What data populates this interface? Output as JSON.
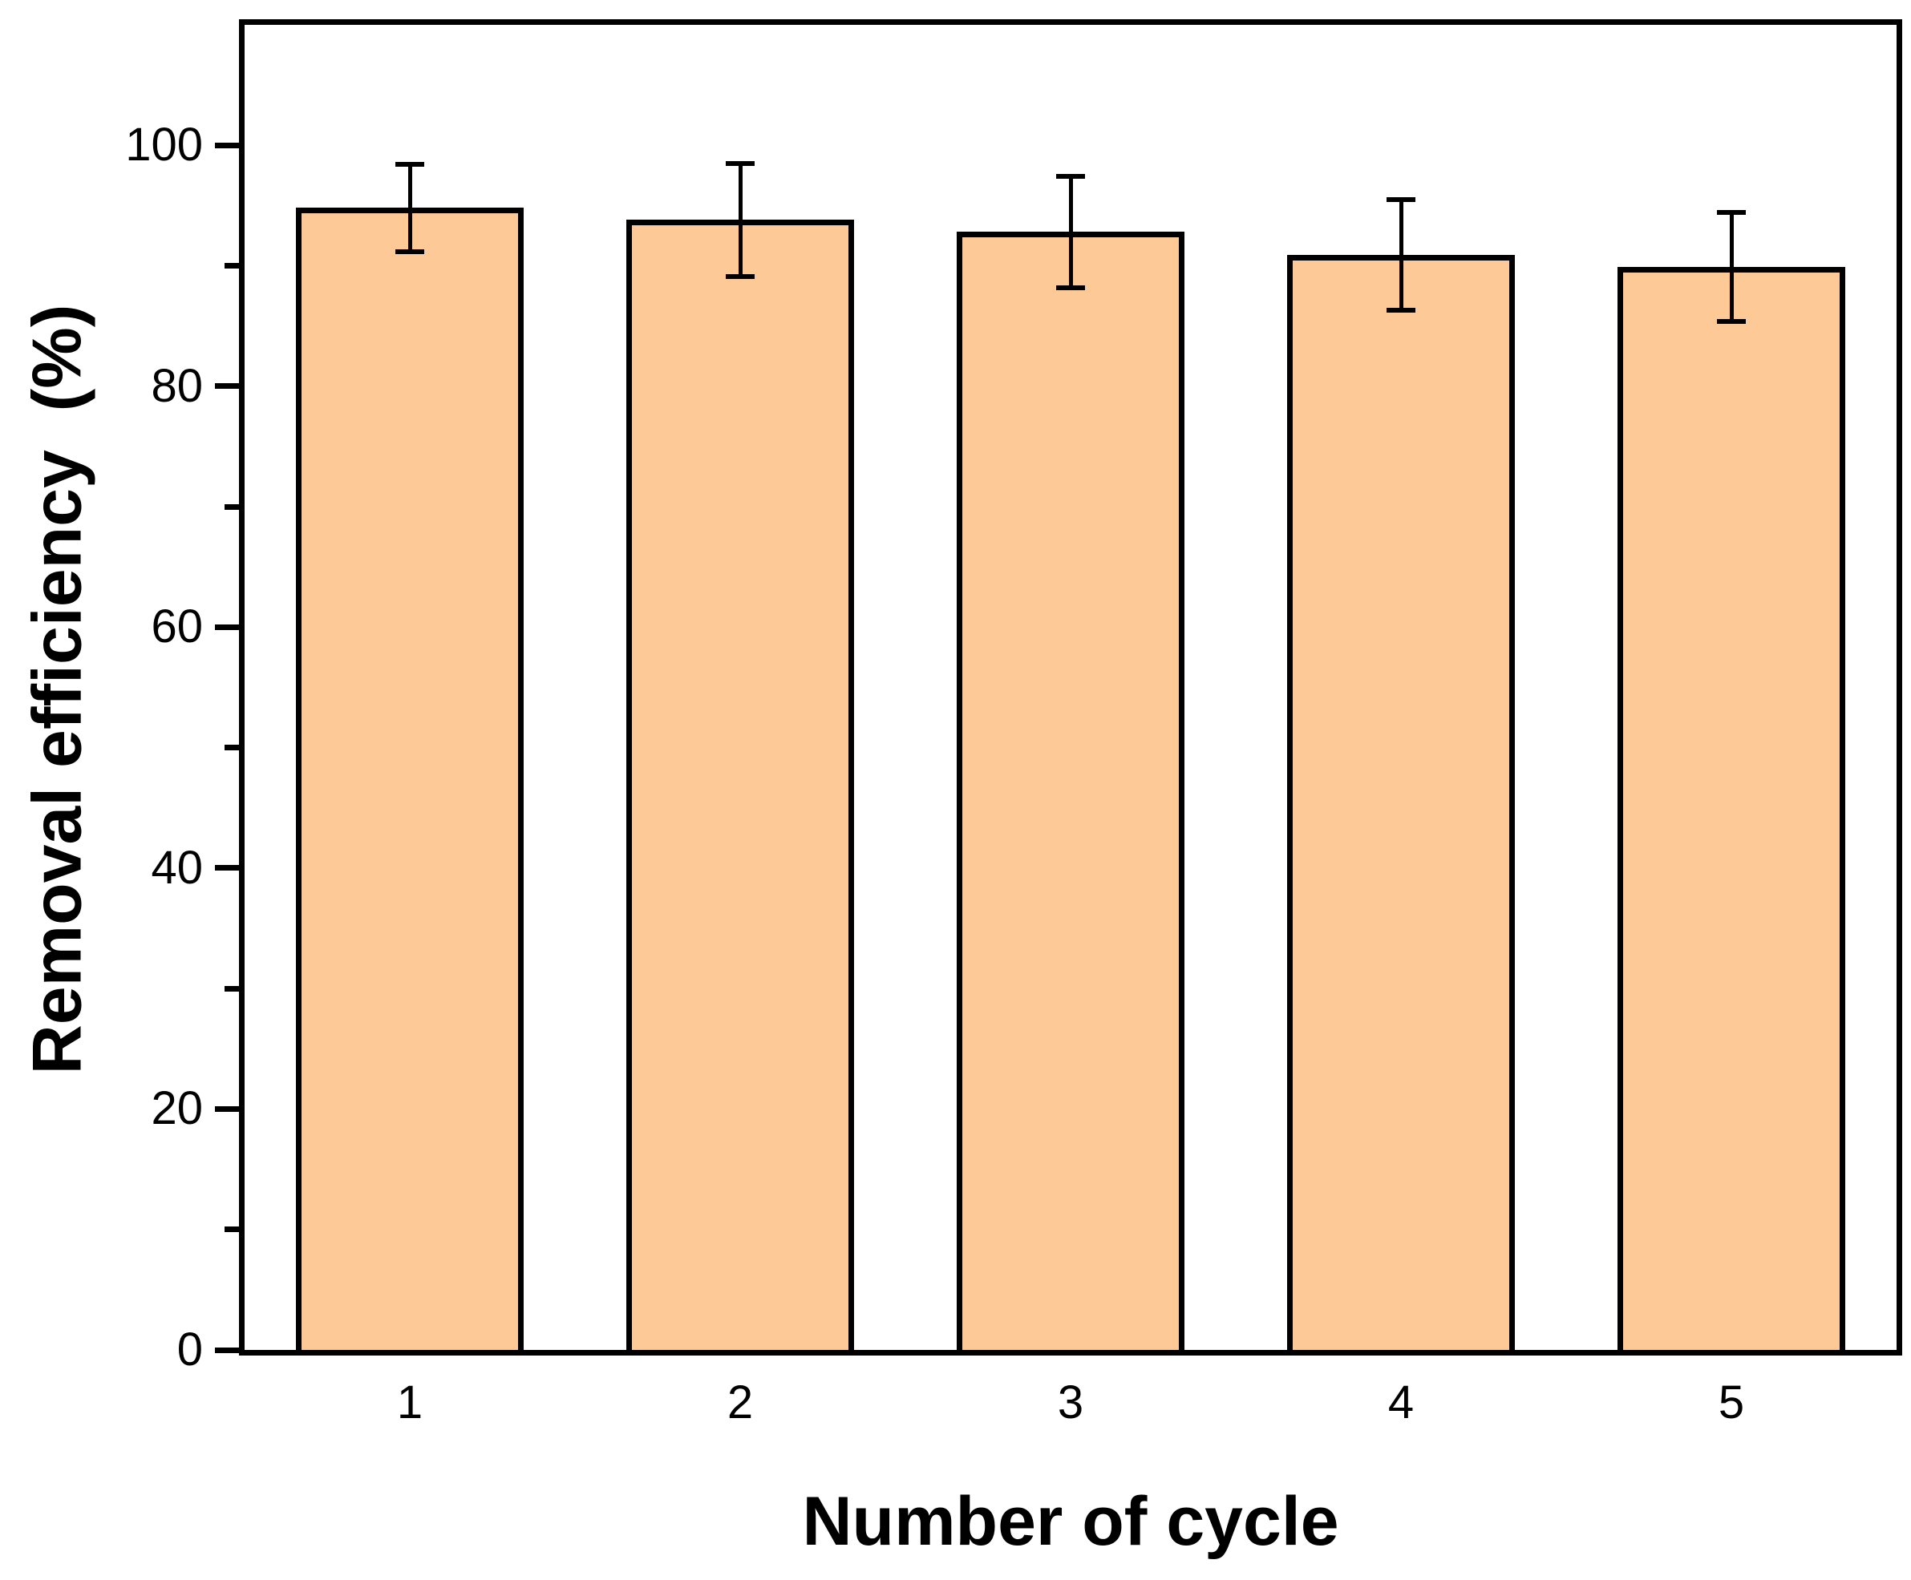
{
  "figure": {
    "background": "#ffffff",
    "bar_fill": "#FCC997",
    "bar_border": "#000000",
    "axis_color": "#000000",
    "text_color": "#000000"
  },
  "chart_data": {
    "type": "bar",
    "title": "",
    "xlabel": "Number of cycle",
    "ylabel": "Removal efficiency  (%)",
    "categories": [
      "1",
      "2",
      "3",
      "4",
      "5"
    ],
    "series": [
      {
        "name": "Removal efficiency",
        "values": [
          94.8,
          93.8,
          92.8,
          90.9,
          89.9
        ],
        "errors": [
          3.6,
          4.7,
          4.6,
          4.6,
          4.5
        ]
      }
    ],
    "ylim": [
      0,
      110
    ],
    "yticks_major": [
      0,
      20,
      40,
      60,
      80,
      100
    ],
    "yticks_minor": [
      10,
      30,
      50,
      70,
      90
    ],
    "grid": false,
    "legend_position": "none",
    "error_bar_style": "symmetric-caps"
  }
}
